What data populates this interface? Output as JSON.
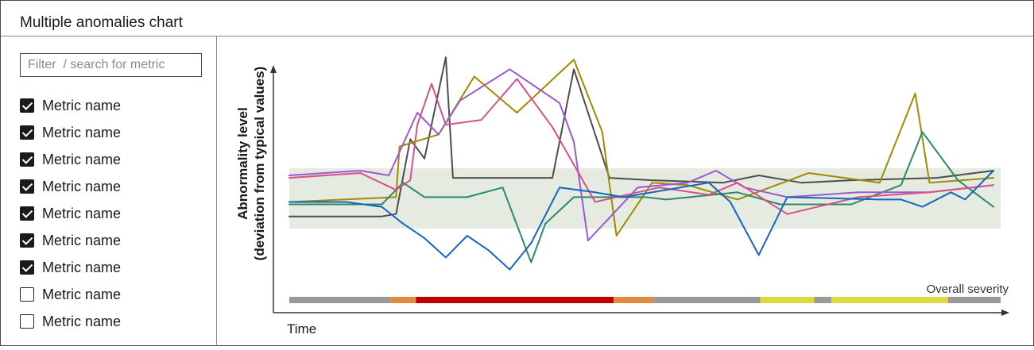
{
  "header": {
    "title": "Multiple anomalies chart"
  },
  "sidebar": {
    "filter_placeholder": "Filter  / search for metric",
    "filter_value": "",
    "metrics": [
      {
        "label": "Metric name",
        "checked": true
      },
      {
        "label": "Metric name",
        "checked": true
      },
      {
        "label": "Metric name",
        "checked": true
      },
      {
        "label": "Metric name",
        "checked": true
      },
      {
        "label": "Metric name",
        "checked": true
      },
      {
        "label": "Metric name",
        "checked": true
      },
      {
        "label": "Metric name",
        "checked": true
      },
      {
        "label": "Metric name",
        "checked": false
      },
      {
        "label": "Metric name",
        "checked": false
      }
    ]
  },
  "chart_data": {
    "type": "line",
    "title": "",
    "xlabel": "Time",
    "ylabel": "Abnormality level\n(deviation from typical values)",
    "xlim": [
      0,
      100
    ],
    "ylim": [
      0,
      100
    ],
    "grid": false,
    "legend": "none",
    "normal_band": {
      "y_low": 27,
      "y_high": 52,
      "color": "#e5ebe0"
    },
    "series": [
      {
        "color": "#4d4d4d",
        "points": [
          [
            0,
            32
          ],
          [
            13,
            32
          ],
          [
            15,
            33
          ],
          [
            17,
            64
          ],
          [
            19,
            56
          ],
          [
            22,
            98
          ],
          [
            23,
            48
          ],
          [
            37,
            48
          ],
          [
            40,
            93
          ],
          [
            45,
            48
          ],
          [
            51,
            47
          ],
          [
            61,
            46
          ],
          [
            66,
            49
          ],
          [
            72,
            46
          ],
          [
            79,
            47
          ],
          [
            91,
            48
          ],
          [
            99,
            51
          ]
        ]
      },
      {
        "color": "#a08a00",
        "points": [
          [
            0,
            38
          ],
          [
            15,
            40
          ],
          [
            15.5,
            61
          ],
          [
            21,
            66
          ],
          [
            26,
            90
          ],
          [
            32,
            75
          ],
          [
            40,
            97
          ],
          [
            44,
            67
          ],
          [
            46,
            24
          ],
          [
            51,
            46
          ],
          [
            56,
            45
          ],
          [
            63,
            39
          ],
          [
            73,
            50
          ],
          [
            78,
            48
          ],
          [
            83,
            46
          ],
          [
            88,
            83
          ],
          [
            90,
            46
          ],
          [
            99,
            48
          ]
        ]
      },
      {
        "color": "#2a8a6a",
        "points": [
          [
            0,
            37
          ],
          [
            13,
            37
          ],
          [
            16,
            46
          ],
          [
            19,
            40
          ],
          [
            25,
            40
          ],
          [
            30,
            44
          ],
          [
            34,
            13
          ],
          [
            36,
            29
          ],
          [
            40,
            40
          ],
          [
            50,
            40
          ],
          [
            53,
            39
          ],
          [
            63,
            42
          ],
          [
            69,
            37
          ],
          [
            79,
            37
          ],
          [
            86,
            45
          ],
          [
            89,
            67
          ],
          [
            94,
            47
          ],
          [
            99,
            36
          ]
        ]
      },
      {
        "color": "#9b59d0",
        "points": [
          [
            0,
            49
          ],
          [
            10,
            51
          ],
          [
            14,
            49
          ],
          [
            18,
            75
          ],
          [
            21,
            66
          ],
          [
            24,
            80
          ],
          [
            31,
            93
          ],
          [
            38,
            79
          ],
          [
            40,
            63
          ],
          [
            42,
            22
          ],
          [
            49,
            44
          ],
          [
            56,
            46
          ],
          [
            60,
            51
          ],
          [
            64,
            44
          ],
          [
            70,
            40
          ],
          [
            80,
            42
          ],
          [
            90,
            42
          ],
          [
            99,
            45
          ]
        ]
      },
      {
        "color": "#d8508a",
        "points": [
          [
            0,
            48
          ],
          [
            10,
            50
          ],
          [
            15,
            43
          ],
          [
            17,
            47
          ],
          [
            18,
            70
          ],
          [
            20,
            87
          ],
          [
            22,
            70
          ],
          [
            27,
            72
          ],
          [
            32,
            89
          ],
          [
            37,
            69
          ],
          [
            43,
            38
          ],
          [
            52,
            44
          ],
          [
            59,
            41
          ],
          [
            63,
            46
          ],
          [
            70,
            33
          ],
          [
            80,
            40
          ],
          [
            90,
            42
          ],
          [
            99,
            45
          ]
        ]
      },
      {
        "color": "#1565c0",
        "points": [
          [
            0,
            38
          ],
          [
            8,
            38
          ],
          [
            13,
            36
          ],
          [
            16,
            29
          ],
          [
            19,
            23
          ],
          [
            22,
            15
          ],
          [
            25,
            24
          ],
          [
            28,
            18
          ],
          [
            31,
            10
          ],
          [
            34,
            21
          ],
          [
            38,
            44
          ],
          [
            43,
            42
          ],
          [
            47,
            40
          ],
          [
            59,
            46
          ],
          [
            62,
            38
          ],
          [
            66,
            16
          ],
          [
            70,
            40
          ],
          [
            83,
            39
          ],
          [
            86,
            39
          ],
          [
            89,
            36
          ],
          [
            93,
            42
          ],
          [
            95,
            39
          ],
          [
            99,
            51
          ]
        ]
      }
    ],
    "severity_bar": {
      "label": "Overall severity",
      "segments": [
        {
          "from": 0,
          "to": 14.2,
          "color": "#999999",
          "level": "normal"
        },
        {
          "from": 14.2,
          "to": 17.8,
          "color": "#e08c3c",
          "level": "medium"
        },
        {
          "from": 17.8,
          "to": 45.6,
          "color": "#c00000",
          "level": "high"
        },
        {
          "from": 45.6,
          "to": 51.2,
          "color": "#e08c3c",
          "level": "medium"
        },
        {
          "from": 51.2,
          "to": 66.2,
          "color": "#999999",
          "level": "normal"
        },
        {
          "from": 66.2,
          "to": 73.8,
          "color": "#e0d840",
          "level": "low"
        },
        {
          "from": 73.8,
          "to": 76.2,
          "color": "#999999",
          "level": "normal"
        },
        {
          "from": 76.2,
          "to": 92.6,
          "color": "#e0d840",
          "level": "low"
        },
        {
          "from": 92.6,
          "to": 100,
          "color": "#999999",
          "level": "normal"
        }
      ]
    }
  }
}
